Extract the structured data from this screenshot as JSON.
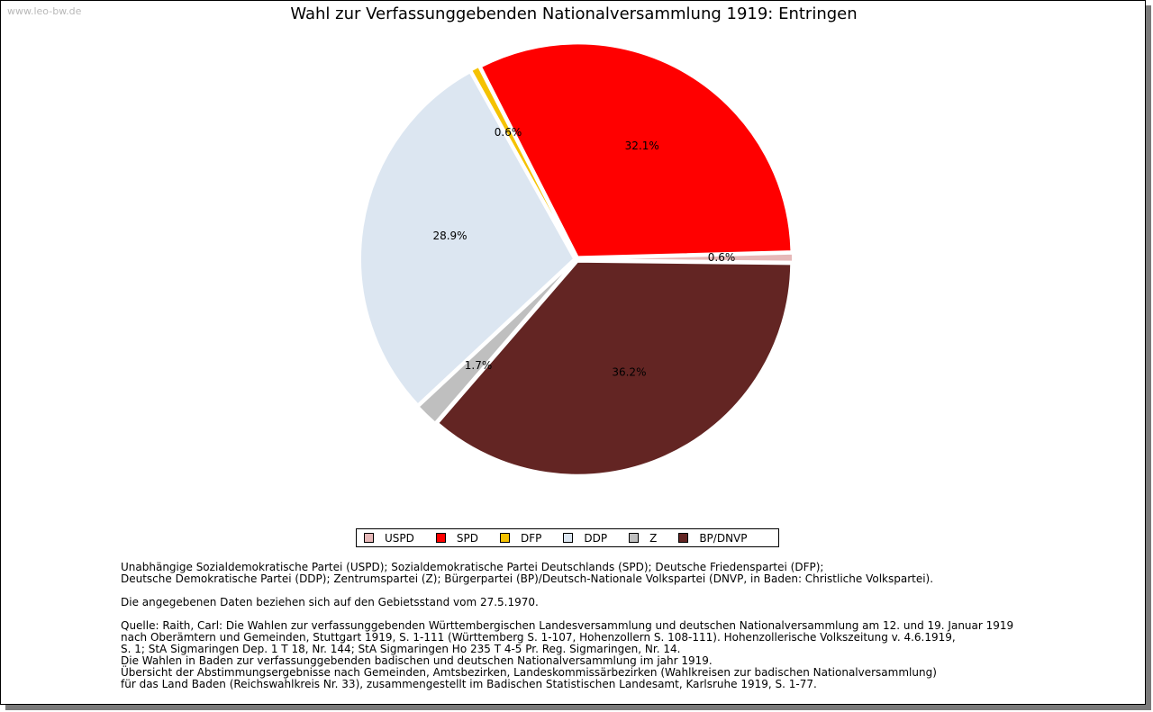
{
  "watermark": "www.leo-bw.de",
  "chart_data": {
    "type": "pie",
    "title": "Wahl zur Verfassunggebenden Nationalversammlung 1919: Entringen",
    "slices": [
      {
        "name": "USPD",
        "value": 0.6,
        "label": "0.6%",
        "color": "#e6b8b8"
      },
      {
        "name": "SPD",
        "value": 32.1,
        "label": "32.1%",
        "color": "#ff0000"
      },
      {
        "name": "DFP",
        "value": 0.6,
        "label": "0.6%",
        "color": "#f5c200"
      },
      {
        "name": "DDP",
        "value": 28.9,
        "label": "28.9%",
        "color": "#dce6f1"
      },
      {
        "name": "Z",
        "value": 1.7,
        "label": "1.7%",
        "color": "#bfbfbf"
      },
      {
        "name": "BP/DNVP",
        "value": 36.2,
        "label": "36.2%",
        "color": "#632523"
      }
    ]
  },
  "notes": {
    "line1": "Unabhängige Sozialdemokratische Partei (USPD); Sozialdemokratische Partei Deutschlands (SPD); Deutsche Friedenspartei (DFP);",
    "line2": "Deutsche Demokratische Partei (DDP); Zentrumspartei (Z); Bürgerpartei (BP)/Deutsch-Nationale Volkspartei (DNVP, in Baden: Christliche Volkspartei).",
    "line3": "",
    "line4": "Die angegebenen Daten beziehen sich auf den Gebietsstand vom 27.5.1970.",
    "line5": "",
    "line6": "Quelle: Raith, Carl: Die Wahlen zur verfassunggebenden Württembergischen Landesversammlung und deutschen Nationalversammlung am 12. und 19. Januar 1919",
    "line7": "nach Oberämtern und Gemeinden, Stuttgart 1919, S. 1-111 (Württemberg S. 1-107, Hohenzollern S. 108-111). Hohenzollerische Volkszeitung v. 4.6.1919,",
    "line8": "S. 1; StA Sigmaringen Dep. 1 T 18, Nr. 144; StA Sigmaringen Ho 235 T 4-5 Pr. Reg. Sigmaringen, Nr. 14.",
    "line9": "Die Wahlen in Baden zur verfassunggebenden badischen und deutschen Nationalversammlung im jahr 1919.",
    "line10": "Übersicht der Abstimmungsergebnisse nach Gemeinden, Amtsbezirken, Landeskommissärbezirken (Wahlkreisen zur badischen Nationalversammlung)",
    "line11": "für das Land Baden (Reichswahlkreis Nr. 33), zusammengestellt im Badischen Statistischen Landesamt, Karlsruhe 1919, S. 1-77."
  }
}
